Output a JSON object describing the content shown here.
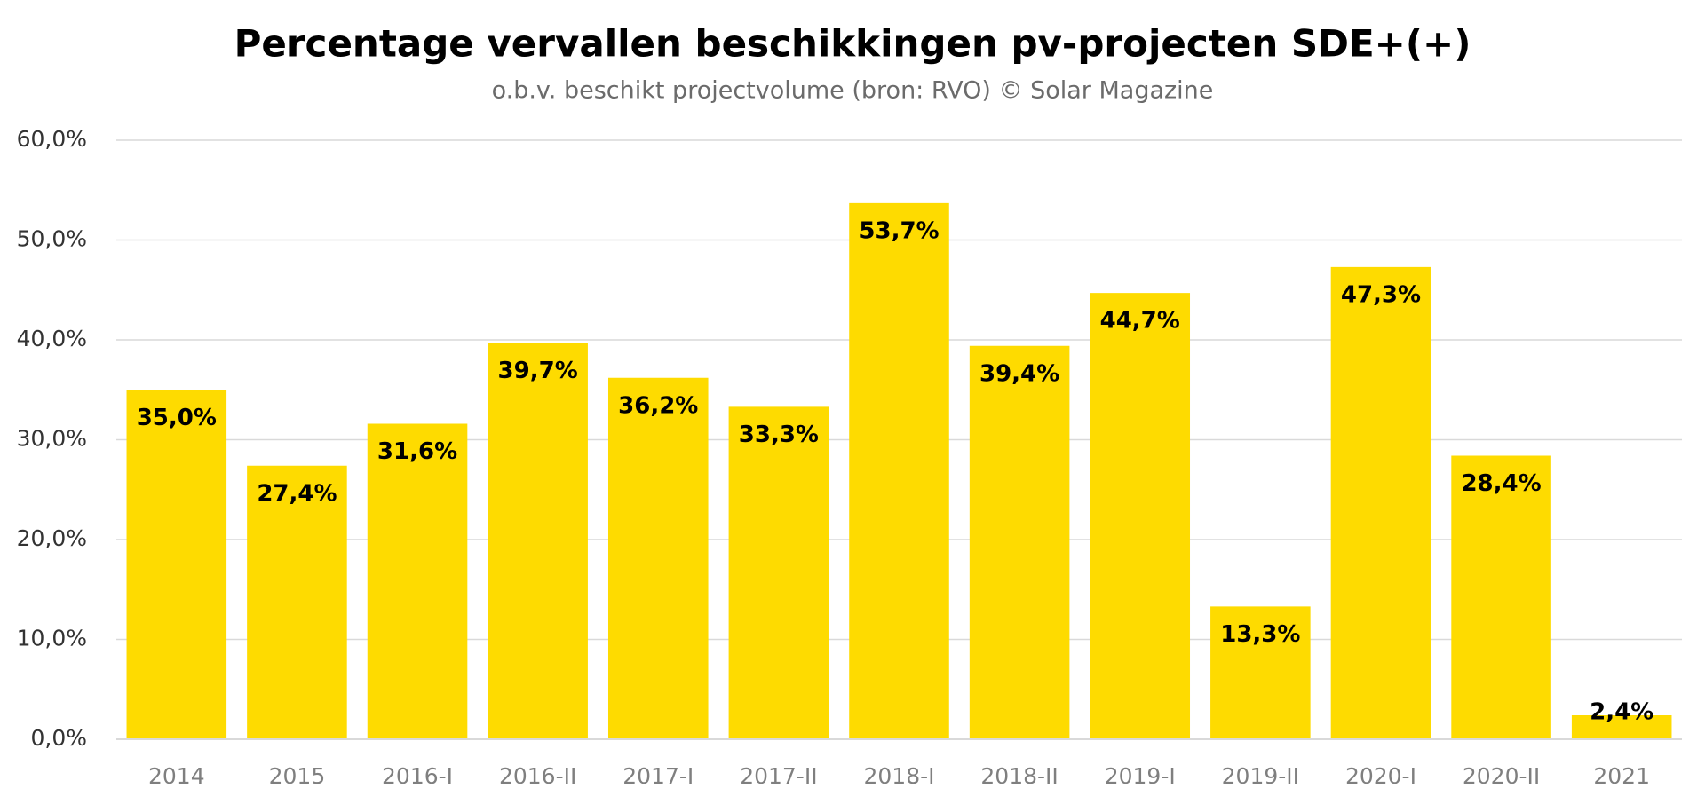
{
  "chart_data": {
    "type": "bar",
    "title": "Percentage vervallen beschikkingen pv-projecten SDE+(+)",
    "subtitle": "o.b.v. beschikt projectvolume (bron: RVO) © Solar Magazine",
    "categories": [
      "2014",
      "2015",
      "2016-I",
      "2016-II",
      "2017-I",
      "2017-II",
      "2018-I",
      "2018-II",
      "2019-I",
      "2019-II",
      "2020-I",
      "2020-II",
      "2021"
    ],
    "values": [
      35.0,
      27.4,
      31.6,
      39.7,
      36.2,
      33.3,
      53.7,
      39.4,
      44.7,
      13.3,
      47.3,
      28.4,
      2.4
    ],
    "value_labels": [
      "35,0%",
      "27,4%",
      "31,6%",
      "39,7%",
      "36,2%",
      "33,3%",
      "53,7%",
      "39,4%",
      "44,7%",
      "13,3%",
      "47,3%",
      "28,4%",
      "2,4%"
    ],
    "color": "#fedb00",
    "ylim": [
      0,
      60
    ],
    "yticks": [
      {
        "value": 0,
        "label": "0,0%"
      },
      {
        "value": 10,
        "label": "10,0%"
      },
      {
        "value": 20,
        "label": "20,0%"
      },
      {
        "value": 30,
        "label": "30,0%"
      },
      {
        "value": 40,
        "label": "40,0%"
      },
      {
        "value": 50,
        "label": "50,0%"
      },
      {
        "value": 60,
        "label": "60,0%"
      }
    ],
    "grid": true
  }
}
